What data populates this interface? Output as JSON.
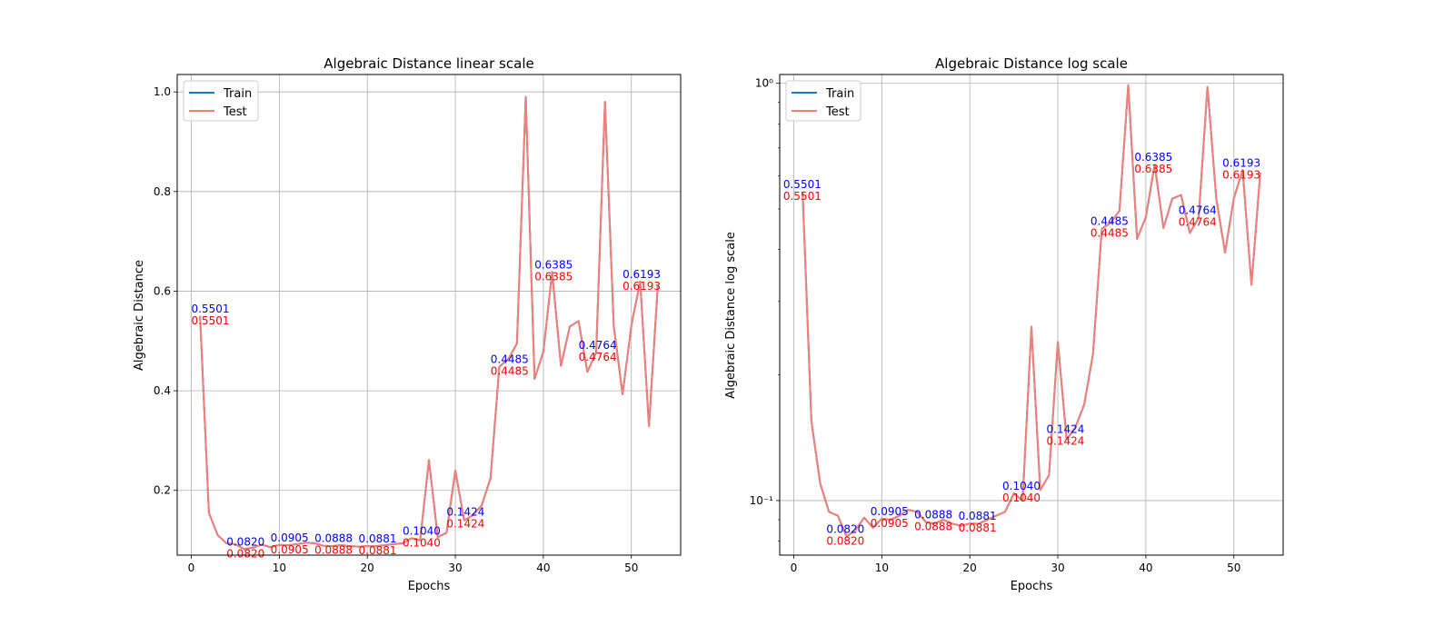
{
  "chart_data": [
    {
      "type": "line",
      "title": "Algebraic Distance linear scale",
      "xlabel": "Epochs",
      "ylabel": "Algebraic Distance",
      "yscale": "linear",
      "xlim": [
        -1.6,
        55.6
      ],
      "ylim": [
        0.07,
        1.035
      ],
      "xticks": [
        0,
        10,
        20,
        30,
        40,
        50
      ],
      "yticks": [
        0.2,
        0.4,
        0.6,
        0.8,
        1.0
      ],
      "ytick_labels": [
        "0.2",
        "0.4",
        "0.6",
        "0.8",
        "1.0"
      ],
      "grid": true,
      "legend": "top-left",
      "series": [
        {
          "name": "Train",
          "color": "#1f77b4"
        },
        {
          "name": "Test",
          "color": "#f08078"
        }
      ],
      "annotations": [
        {
          "x": 0,
          "train": "0.5501",
          "test": "0.5501"
        },
        {
          "x": 4,
          "train": "0.0820",
          "test": "0.0820"
        },
        {
          "x": 9,
          "train": "0.0905",
          "test": "0.0905"
        },
        {
          "x": 14,
          "train": "0.0888",
          "test": "0.0888"
        },
        {
          "x": 19,
          "train": "0.0881",
          "test": "0.0881"
        },
        {
          "x": 24,
          "train": "0.1040",
          "test": "0.1040"
        },
        {
          "x": 29,
          "train": "0.1424",
          "test": "0.1424"
        },
        {
          "x": 34,
          "train": "0.4485",
          "test": "0.4485"
        },
        {
          "x": 39,
          "train": "0.6385",
          "test": "0.6385"
        },
        {
          "x": 44,
          "train": "0.4764",
          "test": "0.4764"
        },
        {
          "x": 49,
          "train": "0.6193",
          "test": "0.6193"
        }
      ]
    },
    {
      "type": "line",
      "title": "Algebraic Distance log scale",
      "xlabel": "Epochs",
      "ylabel": "Algebraic Distance log scale",
      "yscale": "log",
      "xlim": [
        -1.6,
        55.6
      ],
      "ylim": [
        0.074,
        1.05
      ],
      "xticks": [
        0,
        10,
        20,
        30,
        40,
        50
      ],
      "yticks": [
        0.1,
        1.0
      ],
      "ytick_labels": [
        "10⁻¹",
        "10⁰"
      ],
      "minor_yticks": [
        0.08,
        0.09,
        0.2,
        0.3,
        0.4,
        0.5,
        0.6,
        0.7,
        0.8,
        0.9
      ],
      "grid": true,
      "legend": "top-left",
      "series": [
        {
          "name": "Train",
          "color": "#1f77b4"
        },
        {
          "name": "Test",
          "color": "#f08078"
        }
      ],
      "annotations": [
        {
          "x": -1.2,
          "train": "0.5501",
          "test": "0.5501"
        },
        {
          "x": 3.7,
          "train": "0.0820",
          "test": "0.0820"
        },
        {
          "x": 8.7,
          "train": "0.0905",
          "test": "0.0905"
        },
        {
          "x": 13.7,
          "train": "0.0888",
          "test": "0.0888"
        },
        {
          "x": 18.7,
          "train": "0.0881",
          "test": "0.0881"
        },
        {
          "x": 23.7,
          "train": "0.1040",
          "test": "0.1040"
        },
        {
          "x": 28.7,
          "train": "0.1424",
          "test": "0.1424"
        },
        {
          "x": 33.7,
          "train": "0.4485",
          "test": "0.4485"
        },
        {
          "x": 38.7,
          "train": "0.6385",
          "test": "0.6385"
        },
        {
          "x": 43.7,
          "train": "0.4764",
          "test": "0.4764"
        },
        {
          "x": 48.7,
          "train": "0.6193",
          "test": "0.6193"
        }
      ]
    }
  ],
  "epochs": [
    1,
    2,
    3,
    4,
    5,
    6,
    7,
    8,
    9,
    10,
    11,
    12,
    13,
    14,
    15,
    16,
    17,
    18,
    19,
    20,
    21,
    22,
    23,
    24,
    25,
    26,
    27,
    28,
    29,
    30,
    31,
    32,
    33,
    34,
    35,
    36,
    37,
    38,
    39,
    40,
    41,
    42,
    43,
    44,
    45,
    46,
    47,
    48,
    49,
    50,
    51,
    52,
    53
  ],
  "train_values": [
    0.5501,
    0.155,
    0.11,
    0.094,
    0.092,
    0.082,
    0.085,
    0.091,
    0.086,
    0.0905,
    0.09,
    0.092,
    0.095,
    0.094,
    0.0888,
    0.088,
    0.09,
    0.088,
    0.087,
    0.0881,
    0.088,
    0.09,
    0.092,
    0.094,
    0.104,
    0.1,
    0.261,
    0.106,
    0.115,
    0.24,
    0.14,
    0.15,
    0.17,
    0.225,
    0.4485,
    0.463,
    0.495,
    0.99,
    0.424,
    0.478,
    0.6385,
    0.45,
    0.529,
    0.54,
    0.438,
    0.4764,
    0.98,
    0.53,
    0.393,
    0.531,
    0.6193,
    0.329,
    0.61
  ],
  "test_values": [
    0.5501,
    0.155,
    0.11,
    0.094,
    0.092,
    0.082,
    0.085,
    0.091,
    0.086,
    0.0905,
    0.09,
    0.092,
    0.095,
    0.094,
    0.0888,
    0.088,
    0.09,
    0.088,
    0.087,
    0.0881,
    0.088,
    0.09,
    0.092,
    0.094,
    0.104,
    0.1,
    0.261,
    0.106,
    0.115,
    0.24,
    0.14,
    0.15,
    0.17,
    0.225,
    0.4485,
    0.463,
    0.495,
    0.99,
    0.424,
    0.478,
    0.6385,
    0.45,
    0.529,
    0.54,
    0.438,
    0.4764,
    0.98,
    0.53,
    0.393,
    0.531,
    0.6193,
    0.329,
    0.61
  ]
}
